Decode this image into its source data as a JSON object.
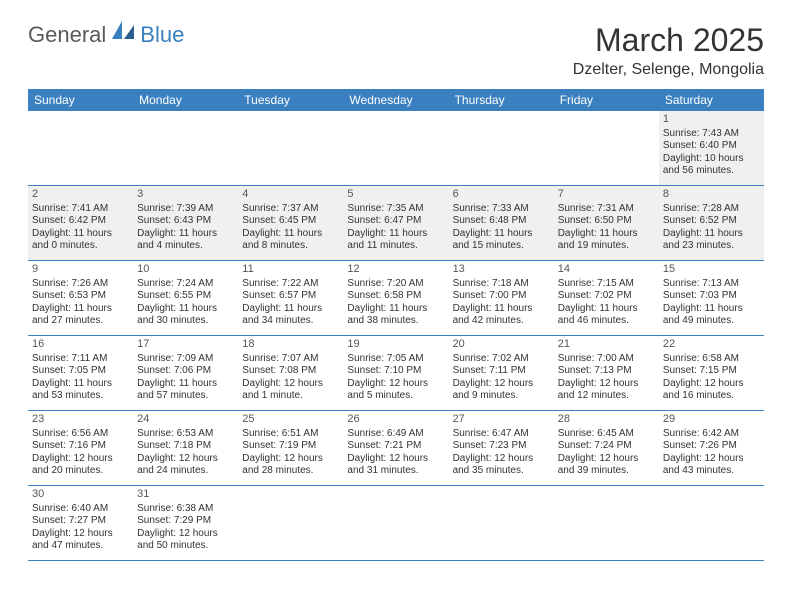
{
  "logo": {
    "part1": "General",
    "part2": "Blue"
  },
  "title": "March 2025",
  "location": "Dzelter, Selenge, Mongolia",
  "colors": {
    "header_bg": "#3a7fbf",
    "header_text": "#ffffff",
    "shaded_cell": "#f0f0f0",
    "border": "#3a7fbf",
    "text": "#333333",
    "logo_gray": "#5a5a5a",
    "logo_blue": "#3a7fbf"
  },
  "weekdays": [
    "Sunday",
    "Monday",
    "Tuesday",
    "Wednesday",
    "Thursday",
    "Friday",
    "Saturday"
  ],
  "weeks": [
    [
      {
        "day": "",
        "empty": true
      },
      {
        "day": "",
        "empty": true
      },
      {
        "day": "",
        "empty": true
      },
      {
        "day": "",
        "empty": true
      },
      {
        "day": "",
        "empty": true
      },
      {
        "day": "",
        "empty": true
      },
      {
        "day": "1",
        "sunrise": "Sunrise: 7:43 AM",
        "sunset": "Sunset: 6:40 PM",
        "daylight1": "Daylight: 10 hours",
        "daylight2": "and 56 minutes.",
        "shaded": true
      }
    ],
    [
      {
        "day": "2",
        "sunrise": "Sunrise: 7:41 AM",
        "sunset": "Sunset: 6:42 PM",
        "daylight1": "Daylight: 11 hours",
        "daylight2": "and 0 minutes.",
        "shaded": true
      },
      {
        "day": "3",
        "sunrise": "Sunrise: 7:39 AM",
        "sunset": "Sunset: 6:43 PM",
        "daylight1": "Daylight: 11 hours",
        "daylight2": "and 4 minutes.",
        "shaded": true
      },
      {
        "day": "4",
        "sunrise": "Sunrise: 7:37 AM",
        "sunset": "Sunset: 6:45 PM",
        "daylight1": "Daylight: 11 hours",
        "daylight2": "and 8 minutes.",
        "shaded": true
      },
      {
        "day": "5",
        "sunrise": "Sunrise: 7:35 AM",
        "sunset": "Sunset: 6:47 PM",
        "daylight1": "Daylight: 11 hours",
        "daylight2": "and 11 minutes.",
        "shaded": true
      },
      {
        "day": "6",
        "sunrise": "Sunrise: 7:33 AM",
        "sunset": "Sunset: 6:48 PM",
        "daylight1": "Daylight: 11 hours",
        "daylight2": "and 15 minutes.",
        "shaded": true
      },
      {
        "day": "7",
        "sunrise": "Sunrise: 7:31 AM",
        "sunset": "Sunset: 6:50 PM",
        "daylight1": "Daylight: 11 hours",
        "daylight2": "and 19 minutes.",
        "shaded": true
      },
      {
        "day": "8",
        "sunrise": "Sunrise: 7:28 AM",
        "sunset": "Sunset: 6:52 PM",
        "daylight1": "Daylight: 11 hours",
        "daylight2": "and 23 minutes.",
        "shaded": true
      }
    ],
    [
      {
        "day": "9",
        "sunrise": "Sunrise: 7:26 AM",
        "sunset": "Sunset: 6:53 PM",
        "daylight1": "Daylight: 11 hours",
        "daylight2": "and 27 minutes."
      },
      {
        "day": "10",
        "sunrise": "Sunrise: 7:24 AM",
        "sunset": "Sunset: 6:55 PM",
        "daylight1": "Daylight: 11 hours",
        "daylight2": "and 30 minutes."
      },
      {
        "day": "11",
        "sunrise": "Sunrise: 7:22 AM",
        "sunset": "Sunset: 6:57 PM",
        "daylight1": "Daylight: 11 hours",
        "daylight2": "and 34 minutes."
      },
      {
        "day": "12",
        "sunrise": "Sunrise: 7:20 AM",
        "sunset": "Sunset: 6:58 PM",
        "daylight1": "Daylight: 11 hours",
        "daylight2": "and 38 minutes."
      },
      {
        "day": "13",
        "sunrise": "Sunrise: 7:18 AM",
        "sunset": "Sunset: 7:00 PM",
        "daylight1": "Daylight: 11 hours",
        "daylight2": "and 42 minutes."
      },
      {
        "day": "14",
        "sunrise": "Sunrise: 7:15 AM",
        "sunset": "Sunset: 7:02 PM",
        "daylight1": "Daylight: 11 hours",
        "daylight2": "and 46 minutes."
      },
      {
        "day": "15",
        "sunrise": "Sunrise: 7:13 AM",
        "sunset": "Sunset: 7:03 PM",
        "daylight1": "Daylight: 11 hours",
        "daylight2": "and 49 minutes."
      }
    ],
    [
      {
        "day": "16",
        "sunrise": "Sunrise: 7:11 AM",
        "sunset": "Sunset: 7:05 PM",
        "daylight1": "Daylight: 11 hours",
        "daylight2": "and 53 minutes."
      },
      {
        "day": "17",
        "sunrise": "Sunrise: 7:09 AM",
        "sunset": "Sunset: 7:06 PM",
        "daylight1": "Daylight: 11 hours",
        "daylight2": "and 57 minutes."
      },
      {
        "day": "18",
        "sunrise": "Sunrise: 7:07 AM",
        "sunset": "Sunset: 7:08 PM",
        "daylight1": "Daylight: 12 hours",
        "daylight2": "and 1 minute."
      },
      {
        "day": "19",
        "sunrise": "Sunrise: 7:05 AM",
        "sunset": "Sunset: 7:10 PM",
        "daylight1": "Daylight: 12 hours",
        "daylight2": "and 5 minutes."
      },
      {
        "day": "20",
        "sunrise": "Sunrise: 7:02 AM",
        "sunset": "Sunset: 7:11 PM",
        "daylight1": "Daylight: 12 hours",
        "daylight2": "and 9 minutes."
      },
      {
        "day": "21",
        "sunrise": "Sunrise: 7:00 AM",
        "sunset": "Sunset: 7:13 PM",
        "daylight1": "Daylight: 12 hours",
        "daylight2": "and 12 minutes."
      },
      {
        "day": "22",
        "sunrise": "Sunrise: 6:58 AM",
        "sunset": "Sunset: 7:15 PM",
        "daylight1": "Daylight: 12 hours",
        "daylight2": "and 16 minutes."
      }
    ],
    [
      {
        "day": "23",
        "sunrise": "Sunrise: 6:56 AM",
        "sunset": "Sunset: 7:16 PM",
        "daylight1": "Daylight: 12 hours",
        "daylight2": "and 20 minutes."
      },
      {
        "day": "24",
        "sunrise": "Sunrise: 6:53 AM",
        "sunset": "Sunset: 7:18 PM",
        "daylight1": "Daylight: 12 hours",
        "daylight2": "and 24 minutes."
      },
      {
        "day": "25",
        "sunrise": "Sunrise: 6:51 AM",
        "sunset": "Sunset: 7:19 PM",
        "daylight1": "Daylight: 12 hours",
        "daylight2": "and 28 minutes."
      },
      {
        "day": "26",
        "sunrise": "Sunrise: 6:49 AM",
        "sunset": "Sunset: 7:21 PM",
        "daylight1": "Daylight: 12 hours",
        "daylight2": "and 31 minutes."
      },
      {
        "day": "27",
        "sunrise": "Sunrise: 6:47 AM",
        "sunset": "Sunset: 7:23 PM",
        "daylight1": "Daylight: 12 hours",
        "daylight2": "and 35 minutes."
      },
      {
        "day": "28",
        "sunrise": "Sunrise: 6:45 AM",
        "sunset": "Sunset: 7:24 PM",
        "daylight1": "Daylight: 12 hours",
        "daylight2": "and 39 minutes."
      },
      {
        "day": "29",
        "sunrise": "Sunrise: 6:42 AM",
        "sunset": "Sunset: 7:26 PM",
        "daylight1": "Daylight: 12 hours",
        "daylight2": "and 43 minutes."
      }
    ],
    [
      {
        "day": "30",
        "sunrise": "Sunrise: 6:40 AM",
        "sunset": "Sunset: 7:27 PM",
        "daylight1": "Daylight: 12 hours",
        "daylight2": "and 47 minutes."
      },
      {
        "day": "31",
        "sunrise": "Sunrise: 6:38 AM",
        "sunset": "Sunset: 7:29 PM",
        "daylight1": "Daylight: 12 hours",
        "daylight2": "and 50 minutes."
      },
      {
        "day": "",
        "empty": true
      },
      {
        "day": "",
        "empty": true
      },
      {
        "day": "",
        "empty": true
      },
      {
        "day": "",
        "empty": true
      },
      {
        "day": "",
        "empty": true
      }
    ]
  ]
}
